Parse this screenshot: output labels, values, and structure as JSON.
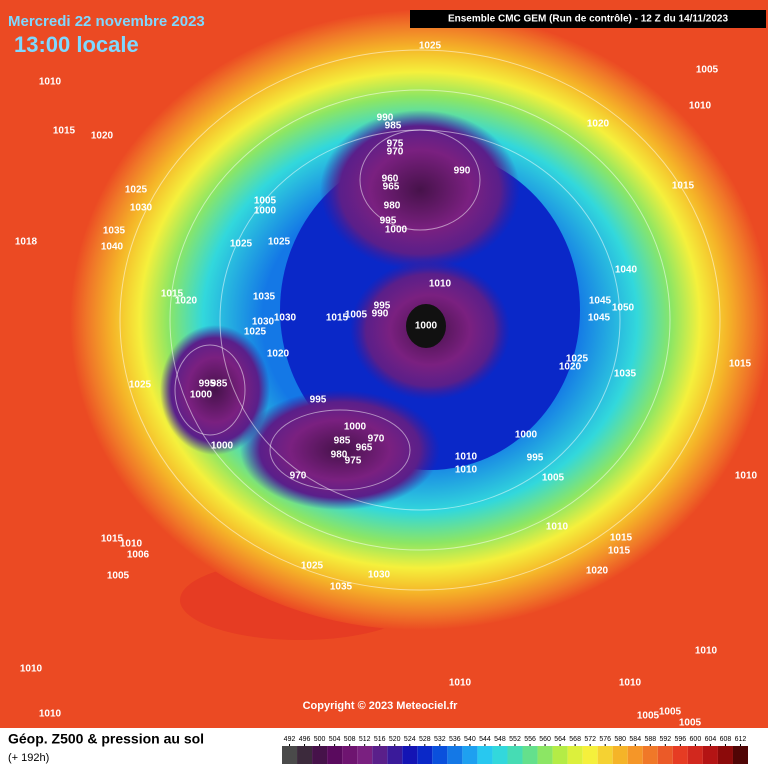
{
  "header": {
    "date": "Mercredi 22 novembre 2023",
    "time": "13:00 locale",
    "model": "Ensemble CMC GEM  (Run de contrôle)  -  12 Z du 14/11/2023"
  },
  "footer": {
    "title": "Géop. Z500 & pression au sol",
    "subtitle": "(+ 192h)",
    "copyright": "Copyright © 2023 Meteociel.fr"
  },
  "colorbar": {
    "ticks": [
      492,
      496,
      500,
      504,
      508,
      512,
      516,
      520,
      524,
      528,
      532,
      536,
      540,
      544,
      548,
      552,
      556,
      560,
      564,
      568,
      572,
      576,
      580,
      584,
      588,
      592,
      596,
      600,
      604,
      608,
      612
    ],
    "colors": [
      "#4a4a4a",
      "#3c2a3c",
      "#46124a",
      "#5a0a5e",
      "#6e1470",
      "#7a2080",
      "#5a1f8a",
      "#3a1a9a",
      "#1414b4",
      "#0a28c8",
      "#0a50dc",
      "#1478e6",
      "#1ea0f0",
      "#28c8f0",
      "#32d8dc",
      "#46dcb4",
      "#64e08c",
      "#8ce664",
      "#b4ec46",
      "#dcf03c",
      "#f5f03c",
      "#f5d232",
      "#f5b428",
      "#f59628",
      "#f07828",
      "#eb5a28",
      "#e63c23",
      "#d2281e",
      "#b41414",
      "#8c0a0a",
      "#500505"
    ]
  },
  "isobar_labels": [
    1025,
    1005,
    1010,
    1010,
    1015,
    1020,
    1020,
    990,
    985,
    975,
    970,
    990,
    960,
    965,
    1015,
    1025,
    1030,
    1005,
    1000,
    980,
    995,
    1000,
    1035,
    1040,
    1025,
    1025,
    1018,
    1040,
    1010,
    1015,
    1020,
    1035,
    995,
    990,
    1005,
    1015,
    1045,
    1050,
    1030,
    1045,
    1030,
    1000,
    1025,
    1020,
    1025,
    1020,
    1035,
    1015,
    1025,
    995,
    985,
    1000,
    995,
    1000,
    970,
    985,
    965,
    980,
    975,
    1000,
    1010,
    995,
    1010,
    1000,
    970,
    1005,
    1010,
    1010,
    1015,
    1015,
    1010,
    1015,
    1006,
    1025,
    1020,
    1005,
    1030,
    1035,
    1010,
    1010,
    1010,
    1010,
    1010,
    1005,
    1005,
    1005
  ]
}
